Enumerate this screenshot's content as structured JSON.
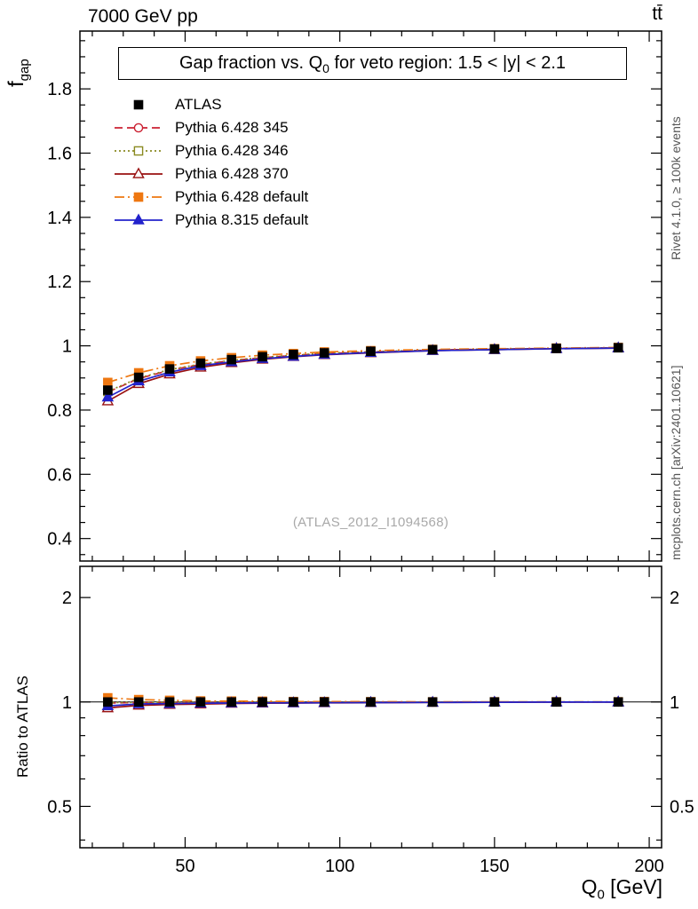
{
  "header": {
    "left": "7000 GeV pp",
    "right": "tt̄"
  },
  "side": {
    "top_right": "Rivet 4.1.0, ≥ 100k events",
    "bottom_right": "mcplots.cern.ch [arXiv:2401.10621]"
  },
  "watermark": "(ATLAS_2012_I1094568)",
  "labels": {
    "title_pre": "Gap fraction vs. Q",
    "title_sub": "0",
    "title_post": " for veto region: 1.5 < |y| < 2.1",
    "ylabel_top_main": "f",
    "ylabel_top_sub": "gap",
    "ylabel_bottom": "Ratio to ATLAS",
    "xlabel_pre": "Q",
    "xlabel_sub": "0",
    "xlabel_post": " [GeV]"
  },
  "chart_data": {
    "type": "line",
    "title": "Gap fraction vs. Q0 for veto region: 1.5 < |y| < 2.1",
    "xlabel": "Q0 [GeV]",
    "ylabel": "fgap",
    "ratio_ylabel": "Ratio to ATLAS",
    "legend_position": "top-left",
    "grid": false,
    "xlim": [
      16,
      204
    ],
    "ylim_top": [
      0.33,
      1.98
    ],
    "ylim_bottom": [
      0.38,
      2.46
    ],
    "ylim_bottom_scale": "log",
    "x_major_ticks": [
      50,
      100,
      150,
      200
    ],
    "x_minor_step": 10,
    "y_major_ticks_top": [
      0.4,
      0.6,
      0.8,
      1.0,
      1.2,
      1.4,
      1.6,
      1.8
    ],
    "y_ticks_bottom": [
      0.5,
      1,
      2
    ],
    "y_minor_ticks_bottom": [
      0.4,
      0.6,
      0.7,
      0.8,
      0.9
    ],
    "x": [
      25,
      35,
      45,
      55,
      65,
      75,
      85,
      95,
      110,
      130,
      150,
      170,
      190
    ],
    "series": [
      {
        "name": "ATLAS",
        "color": "#000000",
        "marker": "square-filled",
        "line": "none",
        "values": [
          0.862,
          0.902,
          0.928,
          0.946,
          0.957,
          0.966,
          0.973,
          0.978,
          0.983,
          0.988,
          0.99,
          0.992,
          0.994
        ],
        "ratio_values": [
          1.0,
          1.0,
          1.0,
          1.0,
          1.0,
          1.0,
          1.0,
          1.0,
          1.0,
          1.0,
          1.0,
          1.0,
          1.0
        ]
      },
      {
        "name": "Pythia 6.428 345",
        "color": "#cc2233",
        "marker": "circle-open",
        "line": "dashed",
        "values": [
          0.856,
          0.898,
          0.924,
          0.942,
          0.954,
          0.963,
          0.97,
          0.976,
          0.981,
          0.987,
          0.99,
          0.992,
          0.994
        ],
        "ratio_values": [
          0.993,
          0.996,
          0.996,
          0.996,
          0.997,
          0.997,
          0.997,
          0.998,
          0.998,
          0.999,
          1.0,
          1.0,
          1.0
        ]
      },
      {
        "name": "Pythia 6.428 346",
        "color": "#8a8a22",
        "marker": "square-open",
        "line": "dotted",
        "values": [
          0.858,
          0.9,
          0.926,
          0.943,
          0.955,
          0.964,
          0.971,
          0.977,
          0.982,
          0.987,
          0.99,
          0.992,
          0.994
        ],
        "ratio_values": [
          0.995,
          0.998,
          0.998,
          0.997,
          0.998,
          0.998,
          0.998,
          0.999,
          0.999,
          0.999,
          1.0,
          1.0,
          1.0
        ]
      },
      {
        "name": "Pythia 6.428 370",
        "color": "#991111",
        "marker": "triangle-open",
        "line": "solid",
        "values": [
          0.828,
          0.882,
          0.912,
          0.933,
          0.947,
          0.958,
          0.966,
          0.972,
          0.978,
          0.985,
          0.988,
          0.991,
          0.993
        ],
        "ratio_values": [
          0.961,
          0.978,
          0.983,
          0.986,
          0.99,
          0.992,
          0.993,
          0.994,
          0.995,
          0.997,
          0.998,
          0.999,
          0.999
        ]
      },
      {
        "name": "Pythia 6.428 default",
        "color": "#ee7711",
        "marker": "square-filled",
        "line": "dashdot",
        "values": [
          0.886,
          0.916,
          0.938,
          0.953,
          0.963,
          0.971,
          0.976,
          0.981,
          0.985,
          0.989,
          0.991,
          0.993,
          0.995
        ],
        "ratio_values": [
          1.028,
          1.016,
          1.011,
          1.007,
          1.006,
          1.005,
          1.003,
          1.003,
          1.002,
          1.001,
          1.001,
          1.001,
          1.001
        ]
      },
      {
        "name": "Pythia 8.315 default",
        "color": "#2222cc",
        "marker": "triangle-filled",
        "line": "solid",
        "values": [
          0.84,
          0.89,
          0.918,
          0.938,
          0.95,
          0.96,
          0.967,
          0.973,
          0.979,
          0.985,
          0.988,
          0.991,
          0.993
        ],
        "ratio_values": [
          0.974,
          0.987,
          0.989,
          0.992,
          0.993,
          0.994,
          0.994,
          0.995,
          0.996,
          0.997,
          0.998,
          0.999,
          0.999
        ]
      }
    ]
  }
}
